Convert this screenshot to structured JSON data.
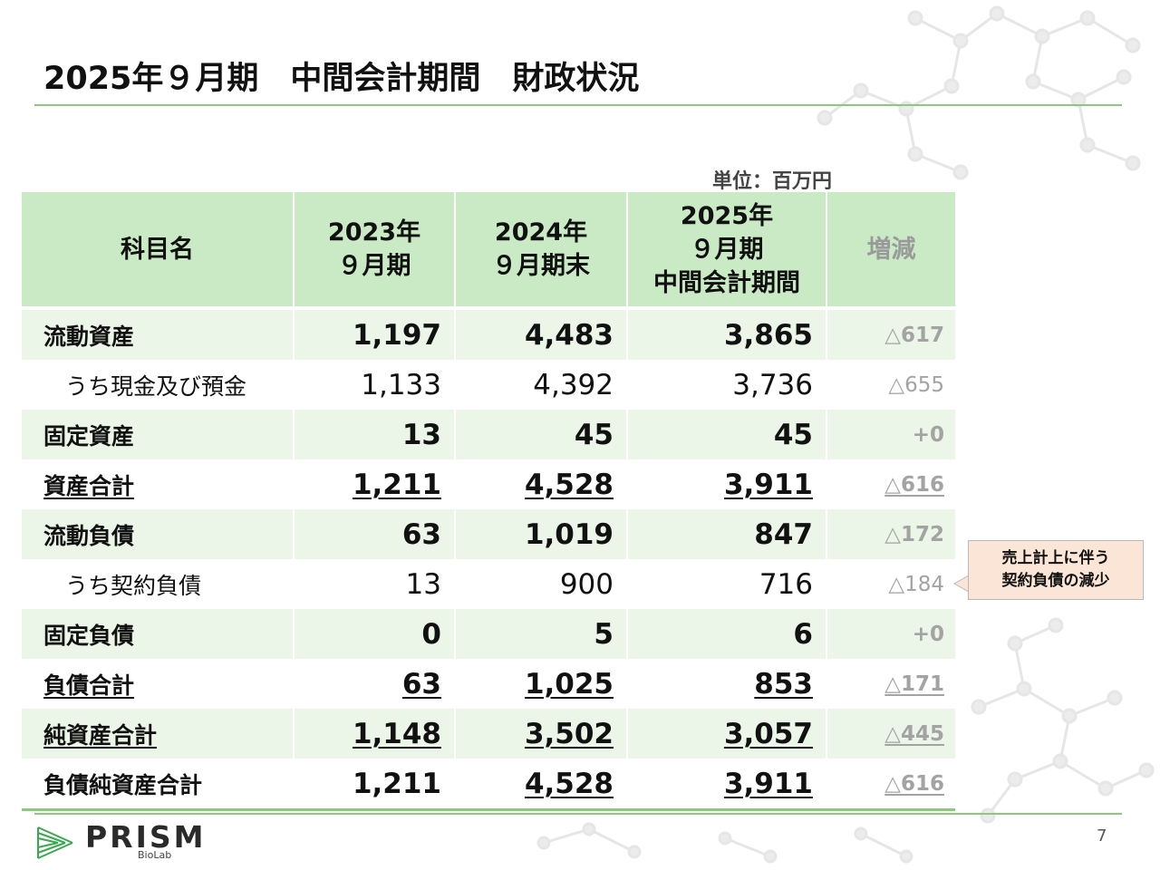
{
  "title": "2025年９月期　中間会計期間　財政状況",
  "unit": "単位：百万円",
  "table": {
    "headers": [
      {
        "lines": [
          "科目名"
        ]
      },
      {
        "lines": [
          "2023年",
          "９月期"
        ]
      },
      {
        "lines": [
          "2024年",
          "９月期末"
        ]
      },
      {
        "lines": [
          "2025年",
          "９月期",
          "中間会計期間"
        ]
      },
      {
        "lines": [
          "増減"
        ]
      }
    ],
    "rows": [
      {
        "name": "流動資産",
        "v2023": "1,197",
        "v2024": "4,483",
        "v2025": "3,865",
        "diff": "△617"
      },
      {
        "name": "うち現金及び預金",
        "v2023": "1,133",
        "v2024": "4,392",
        "v2025": "3,736",
        "diff": "△655"
      },
      {
        "name": "固定資産",
        "v2023": "13",
        "v2024": "45",
        "v2025": "45",
        "diff": "+0"
      },
      {
        "name": "資産合計",
        "v2023": "1,211",
        "v2024": "4,528",
        "v2025": "3,911",
        "diff": "△616"
      },
      {
        "name": "流動負債",
        "v2023": "63",
        "v2024": "1,019",
        "v2025": "847",
        "diff": "△172"
      },
      {
        "name": "うち契約負債",
        "v2023": "13",
        "v2024": "900",
        "v2025": "716",
        "diff": "△184"
      },
      {
        "name": "固定負債",
        "v2023": "0",
        "v2024": "5",
        "v2025": "6",
        "diff": "+0"
      },
      {
        "name": "負債合計",
        "v2023": "63",
        "v2024": "1,025",
        "v2025": "853",
        "diff": "△171"
      },
      {
        "name": "純資産合計",
        "v2023": "1,148",
        "v2024": "3,502",
        "v2025": "3,057",
        "diff": "△445"
      },
      {
        "name": "負債純資産合計",
        "v2023": "1,211",
        "v2024": "4,528",
        "v2025": "3,911",
        "diff": "△616"
      }
    ]
  },
  "callout": {
    "line1": "売上計上に伴う",
    "line2": "契約負債の減少"
  },
  "logo": {
    "name": "PRISM",
    "sub": "BioLab"
  },
  "page_number": "7",
  "colors": {
    "accent_green": "#8cc97f",
    "header_bg": "#c9eac4",
    "row_shade": "#ebf5e8",
    "callout_bg": "#fbe5d6"
  }
}
